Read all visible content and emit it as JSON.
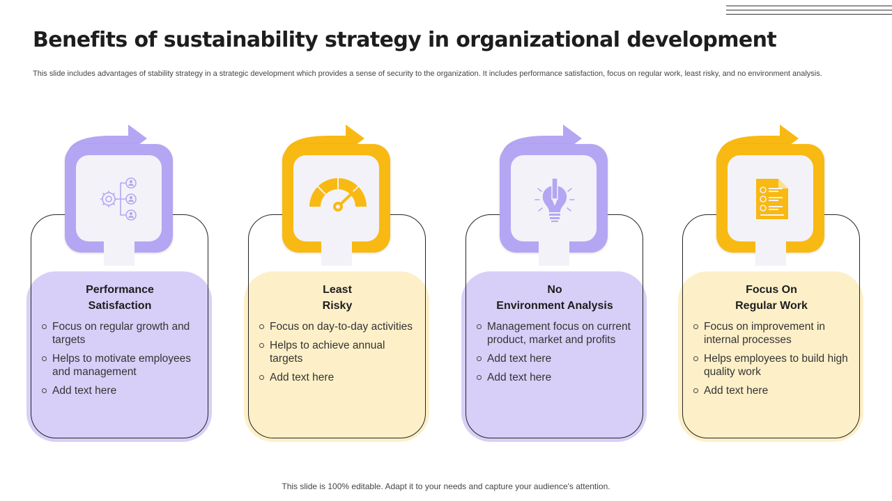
{
  "title": "Benefits of sustainability strategy in organizational development",
  "subtitle": "This slide includes advantages of stability strategy in a strategic development which provides a sense of security to the organization. It includes performance satisfaction, focus on regular work, least risky, and no environment analysis.",
  "footer": "This slide is 100% editable. Adapt it to your needs and capture your audience's attention.",
  "colors": {
    "purple": "#b4a6f3",
    "purple_light": "#d8cff8",
    "yellow": "#f9b913",
    "yellow_light": "#fdf0c9"
  },
  "cards": [
    {
      "title_line1": "Performance",
      "title_line2": "Satisfaction",
      "icon": "gear-people-network-icon",
      "bullets": [
        "Focus on regular growth and targets",
        "Helps to motivate employees and management",
        "Add text here"
      ]
    },
    {
      "title_line1": "Least",
      "title_line2": "Risky",
      "icon": "speedometer-gauge-icon",
      "bullets": [
        "Focus on day-to-day activities",
        "Helps to achieve annual targets",
        "Add text here"
      ]
    },
    {
      "title_line1": "No",
      "title_line2": "Environment Analysis",
      "icon": "lightbulb-pencil-icon",
      "bullets": [
        "Management focus on current product, market and profits",
        "Add text here",
        "Add text here"
      ]
    },
    {
      "title_line1": "Focus On",
      "title_line2": "Regular Work",
      "icon": "document-list-icon",
      "bullets": [
        "Focus on improvement in internal processes",
        "Helps employees to build high quality work",
        "Add text here"
      ]
    }
  ]
}
